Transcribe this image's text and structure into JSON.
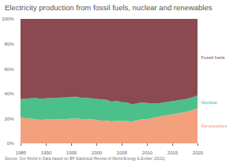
{
  "chart_data": {
    "type": "area",
    "stacked": true,
    "title": "Electricity production from fossil fuels, nuclear and renewables",
    "source": "Source: Our World in Data based on BP Statistical Review of World Energy & Ember (2021)",
    "x": [
      1985,
      1986,
      1987,
      1988,
      1989,
      1990,
      1991,
      1992,
      1993,
      1994,
      1995,
      1996,
      1997,
      1998,
      1999,
      2000,
      2001,
      2002,
      2003,
      2004,
      2005,
      2006,
      2007,
      2008,
      2009,
      2010,
      2011,
      2012,
      2013,
      2014,
      2015,
      2016,
      2017,
      2018,
      2019,
      2020
    ],
    "series": [
      {
        "name": "Renewables",
        "color": "#f2a07e",
        "values": [
          20.5,
          20.3,
          19.8,
          19.6,
          18.8,
          19.3,
          19.3,
          19.2,
          19.7,
          19.5,
          19.9,
          19.9,
          19.6,
          19.6,
          19.3,
          19.0,
          18.4,
          18.4,
          17.7,
          18.1,
          17.9,
          18.0,
          17.6,
          18.4,
          19.5,
          19.5,
          20.3,
          21.2,
          22.0,
          22.7,
          23.3,
          24.0,
          24.8,
          25.6,
          26.6,
          28.3
        ]
      },
      {
        "name": "Nuclear",
        "color": "#4cc08a",
        "values": [
          15.1,
          15.6,
          16.4,
          16.9,
          17.0,
          17.0,
          17.2,
          17.1,
          17.2,
          17.3,
          17.5,
          17.6,
          17.1,
          17.0,
          17.0,
          16.7,
          16.9,
          16.5,
          15.8,
          16.0,
          15.2,
          14.9,
          13.9,
          13.5,
          13.4,
          12.9,
          11.7,
          10.7,
          10.6,
          10.7,
          10.6,
          10.5,
          10.3,
          10.2,
          10.4,
          10.1
        ]
      },
      {
        "name": "Fossil fuels",
        "color": "#8a4a50",
        "values": [
          64.4,
          64.1,
          63.8,
          63.5,
          64.2,
          63.7,
          63.5,
          63.7,
          63.1,
          63.2,
          62.6,
          62.5,
          63.3,
          63.4,
          63.7,
          64.3,
          64.7,
          65.1,
          66.5,
          65.9,
          66.9,
          67.1,
          68.5,
          68.1,
          67.1,
          67.6,
          68.0,
          68.1,
          67.4,
          66.6,
          66.1,
          65.5,
          64.9,
          64.2,
          63.0,
          61.6
        ]
      }
    ],
    "xlim": [
      1985,
      2020
    ],
    "xticks": [
      1985,
      1990,
      1995,
      2000,
      2005,
      2010,
      2015,
      2020
    ],
    "ylim": [
      0,
      100
    ],
    "yticks": [
      {
        "value": 0,
        "label": "0%"
      },
      {
        "value": 20,
        "label": "20%"
      },
      {
        "value": 40,
        "label": "40%"
      },
      {
        "value": 60,
        "label": "60%"
      },
      {
        "value": 80,
        "label": "80%"
      },
      {
        "value": 100,
        "label": "100%"
      }
    ]
  }
}
